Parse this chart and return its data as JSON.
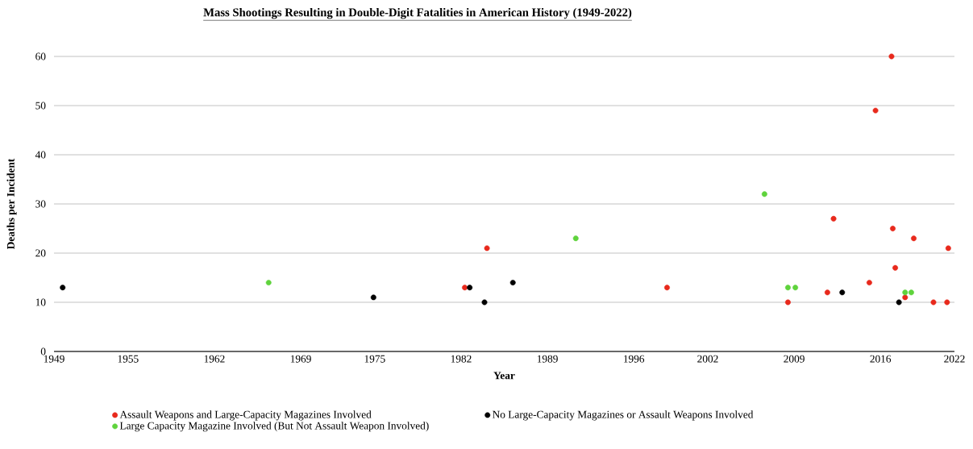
{
  "chart_data": {
    "type": "scatter",
    "title": "Mass Shootings Resulting in Double-Digit Fatalities in American History (1949-2022)",
    "xlabel": "Year",
    "ylabel": "Deaths per Incident",
    "xlim": [
      1949,
      2022
    ],
    "ylim": [
      0,
      60
    ],
    "xticks": [
      1949,
      1955,
      1962,
      1969,
      1975,
      1982,
      1989,
      1996,
      2002,
      2009,
      2016,
      2022
    ],
    "yticks": [
      0,
      10,
      20,
      30,
      40,
      50,
      60
    ],
    "grid": "y",
    "legend": "bottom",
    "marker": "circle",
    "series": [
      {
        "name": "Assault Weapons and Large-Capacity Magazines Involved",
        "color": "#e8291c",
        "x": [
          1982.3,
          1984.1,
          1998.7,
          2008.5,
          2011.7,
          2012.2,
          2015.1,
          2015.6,
          2016.9,
          2017.0,
          2017.2,
          2018.0,
          2018.7,
          2020.3,
          2021.4,
          2021.5
        ],
        "values": [
          13,
          21,
          13,
          10,
          12,
          27,
          14,
          49,
          60,
          25,
          17,
          11,
          23,
          10,
          10,
          21
        ]
      },
      {
        "name": "Large Capacity Magazine Involved (But Not Assault Weapon Involved)",
        "color": "#5fd33c",
        "x": [
          1966.4,
          1991.3,
          2006.6,
          2008.5,
          2009.1,
          2018.0,
          2018.5
        ],
        "values": [
          14,
          23,
          32,
          13,
          13,
          12,
          12
        ]
      },
      {
        "name": "No Large-Capacity Magazines or Assault Weapons Involved",
        "color": "#000000",
        "x": [
          1949.7,
          1974.9,
          1982.7,
          1983.9,
          1986.2,
          2012.9,
          2017.5
        ],
        "values": [
          13,
          11,
          13,
          10,
          14,
          12,
          10
        ]
      }
    ]
  }
}
